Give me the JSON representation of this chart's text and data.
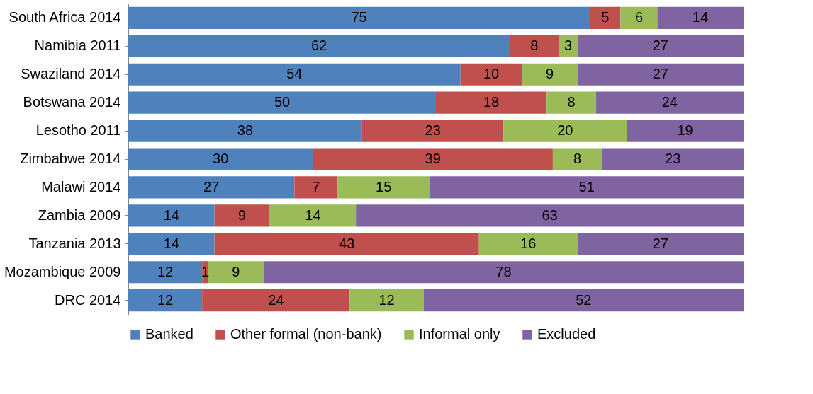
{
  "chart_data": {
    "type": "bar",
    "orientation": "horizontal",
    "stacked": true,
    "data_labels": true,
    "legend": "bottom",
    "grid": false,
    "categories": [
      "South Africa 2014",
      "Namibia 2011",
      "Swaziland 2014",
      "Botswana 2014",
      "Lesotho 2011",
      "Zimbabwe 2014",
      "Malawi 2014",
      "Zambia 2009",
      "Tanzania 2013",
      "Mozambique 2009",
      "DRC 2014"
    ],
    "series": [
      {
        "name": "Banked",
        "color": "#4f81bd",
        "values": [
          75,
          62,
          54,
          50,
          38,
          30,
          27,
          14,
          14,
          12,
          12
        ]
      },
      {
        "name": "Other formal (non-bank)",
        "color": "#c0504d",
        "values": [
          5,
          8,
          10,
          18,
          23,
          39,
          7,
          9,
          43,
          1,
          24
        ]
      },
      {
        "name": "Informal only",
        "color": "#9bbb59",
        "values": [
          6,
          3,
          9,
          8,
          20,
          8,
          15,
          14,
          16,
          9,
          12
        ]
      },
      {
        "name": "Excluded",
        "color": "#8064a2",
        "values": [
          14,
          27,
          27,
          24,
          19,
          23,
          51,
          63,
          27,
          78,
          52
        ]
      }
    ]
  }
}
